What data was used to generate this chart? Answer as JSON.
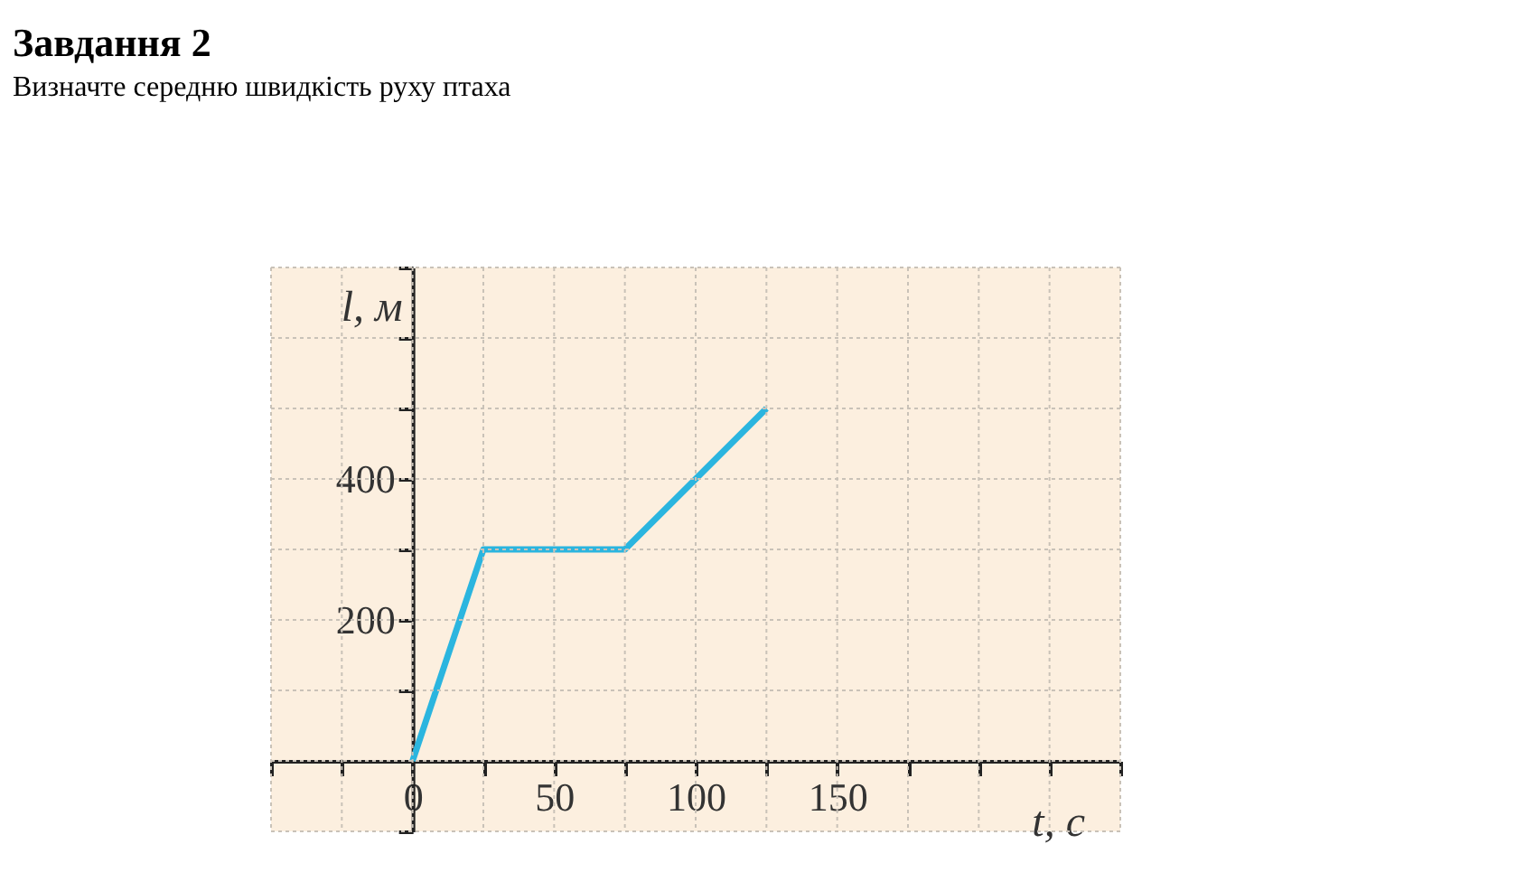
{
  "chart_data": {
    "type": "line",
    "title": "Завдання 2",
    "subtitle": "Визначте  середню швидкість     руху  птаха",
    "xlabel": "t, с",
    "ylabel": "l, м",
    "x": [
      0,
      25,
      75,
      125
    ],
    "series": [
      {
        "color": "#2bb5df",
        "values": [
          0,
          300,
          300,
          500
        ]
      }
    ],
    "xlim": [
      -50,
      250
    ],
    "ylim": [
      -100,
      700
    ],
    "xticks": [
      {
        "value": -50,
        "label": null
      },
      {
        "value": -25,
        "label": null
      },
      {
        "value": 0,
        "label": "0"
      },
      {
        "value": 25,
        "label": null
      },
      50,
      {
        "value": 75,
        "label": null
      },
      100,
      {
        "value": 125,
        "label": null
      },
      150,
      {
        "value": 175,
        "label": null
      },
      {
        "value": 200,
        "label": null
      },
      {
        "value": 225,
        "label": null
      },
      {
        "value": 250,
        "label": null
      }
    ],
    "yticks": [
      {
        "value": -100,
        "label": null
      },
      {
        "value": 0,
        "label": null
      },
      {
        "value": 100,
        "label": null
      },
      200,
      {
        "value": 300,
        "label": null
      },
      400,
      {
        "value": 500,
        "label": null
      },
      {
        "value": 600,
        "label": null
      },
      {
        "value": 700,
        "label": null
      }
    ],
    "grid": true,
    "marker": "none",
    "line_style": "solid"
  }
}
